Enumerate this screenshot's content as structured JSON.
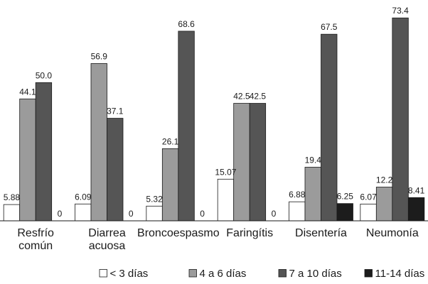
{
  "chart_data": {
    "type": "bar",
    "categories": [
      [
        "Resfrío",
        "común"
      ],
      [
        "Diarrea",
        "acuosa"
      ],
      [
        "Broncoespasmo"
      ],
      [
        "Faringítis"
      ],
      [
        "Disentería"
      ],
      [
        "Neumonía"
      ]
    ],
    "series": [
      {
        "name": "< 3 días",
        "color": "#ffffff",
        "values": [
          5.88,
          6.09,
          5.32,
          15.07,
          6.88,
          6.07
        ],
        "labels": [
          "5.88",
          "6.09",
          "5.32",
          "15.07",
          "6.88",
          "6.07"
        ]
      },
      {
        "name": "4 a 6 días",
        "color": "#9b9b9b",
        "values": [
          44.1,
          56.9,
          26.1,
          42.5,
          19.4,
          12.2
        ],
        "labels": [
          "44.1",
          "56.9",
          "26.1",
          "42.5",
          "19.4",
          "12.2"
        ]
      },
      {
        "name": "7 a 10 días",
        "color": "#555555",
        "values": [
          50.0,
          37.1,
          68.6,
          42.5,
          67.5,
          73.4
        ],
        "labels": [
          "50.0",
          "37.1",
          "68.6",
          "42.5",
          "67.5",
          "73.4"
        ]
      },
      {
        "name": "11-14 días",
        "color": "#1c1c1c",
        "values": [
          0,
          0,
          0,
          0,
          6.25,
          8.41
        ],
        "labels": [
          "0",
          "0",
          "0",
          "0",
          "6.25",
          "8.41"
        ]
      }
    ],
    "title": "",
    "xlabel": "",
    "ylabel": "",
    "ylim": [
      0,
      75
    ],
    "grid": false,
    "legend_position": "bottom"
  }
}
